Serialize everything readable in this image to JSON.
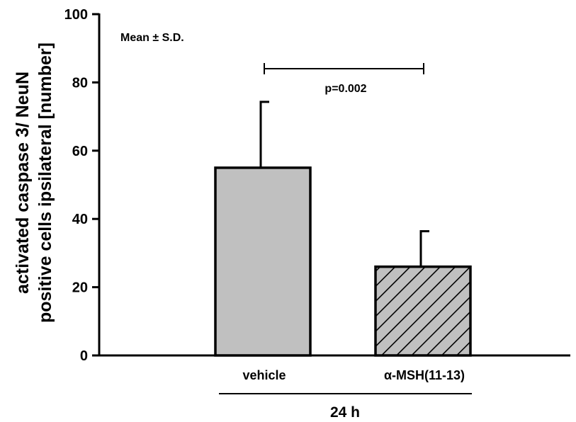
{
  "chart_data": {
    "type": "bar",
    "categories": [
      "vehicle",
      "α-MSH(11-13)"
    ],
    "values": [
      55,
      26
    ],
    "error_sd": [
      19.3,
      10.4
    ],
    "fill_patterns": [
      "solid",
      "diagonal-hatch"
    ],
    "colors": {
      "bar_fill": "#c0c0c0",
      "stroke": "#000000"
    },
    "ylabel_line1": "activated caspase 3/ NeuN",
    "ylabel_line2": "positive cells ipsilateral [number]",
    "ylim": [
      0,
      100
    ],
    "yticks": [
      0,
      20,
      40,
      60,
      80,
      100
    ],
    "group_label": "24 h",
    "annotations": {
      "legend_note": "Mean ± S.D.",
      "significance": "p=0.002"
    },
    "grid": false
  }
}
